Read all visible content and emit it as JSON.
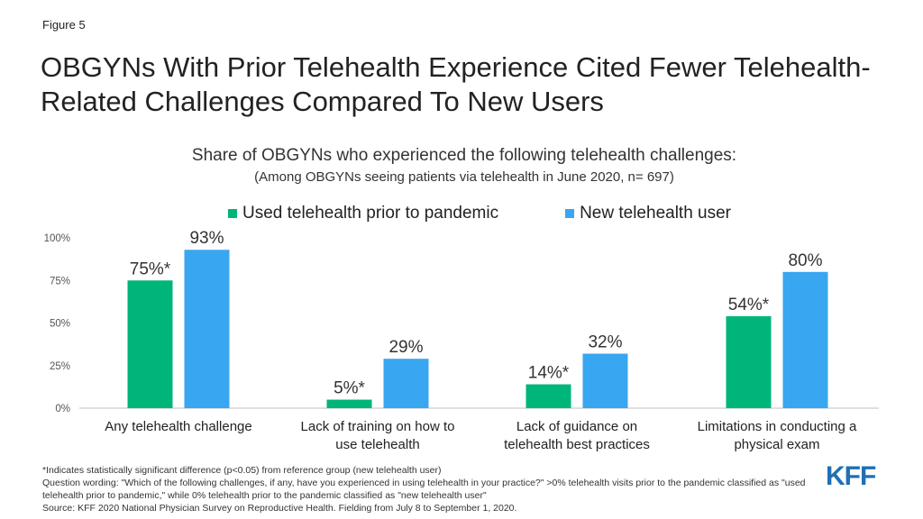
{
  "figure_label": "Figure 5",
  "title": "OBGYNs With Prior Telehealth Experience Cited Fewer Telehealth-Related Challenges Compared To New Users",
  "footnotes": {
    "significance": "*Indicates statistically significant difference (p<0.05) from reference group (new telehealth user)",
    "question": "Question wording: \"Which of the following challenges, if any, have you experienced in using telehealth in your practice?\" >0% telehealth visits prior to the pandemic classified as \"used telehealth prior to pandemic,\" while 0% telehealth prior to the pandemic classified as \"new telehealth user\"",
    "source": "Source: KFF 2020 National Physician Survey on Reproductive Health. Fielding from July 8 to September 1, 2020."
  },
  "logo_text": "KFF",
  "chart_data": {
    "type": "bar",
    "title": "Share of OBGYNs who experienced the following telehealth challenges:",
    "subtitle": "(Among OBGYNs seeing patients via telehealth in June 2020, n= 697)",
    "categories": [
      [
        "Any telehealth challenge"
      ],
      [
        "Lack of training on how to",
        "use telehealth"
      ],
      [
        "Lack of guidance on",
        "telehealth best practices"
      ],
      [
        "Limitations in conducting a",
        "physical exam"
      ]
    ],
    "series": [
      {
        "name": "Used telehealth prior to pandemic",
        "color": "#00b57a",
        "values": [
          75,
          5,
          14,
          54
        ],
        "labels": [
          "75%*",
          "5%*",
          "14%*",
          "54%*"
        ]
      },
      {
        "name": "New telehealth user",
        "color": "#38a6f0",
        "values": [
          93,
          29,
          32,
          80
        ],
        "labels": [
          "93%",
          "29%",
          "32%",
          "80%"
        ]
      }
    ],
    "yticks": [
      0,
      25,
      50,
      75,
      100
    ],
    "ytick_labels": [
      "0%",
      "25%",
      "50%",
      "75%",
      "100%"
    ],
    "ylim": [
      0,
      100
    ],
    "legend_position": "top"
  }
}
